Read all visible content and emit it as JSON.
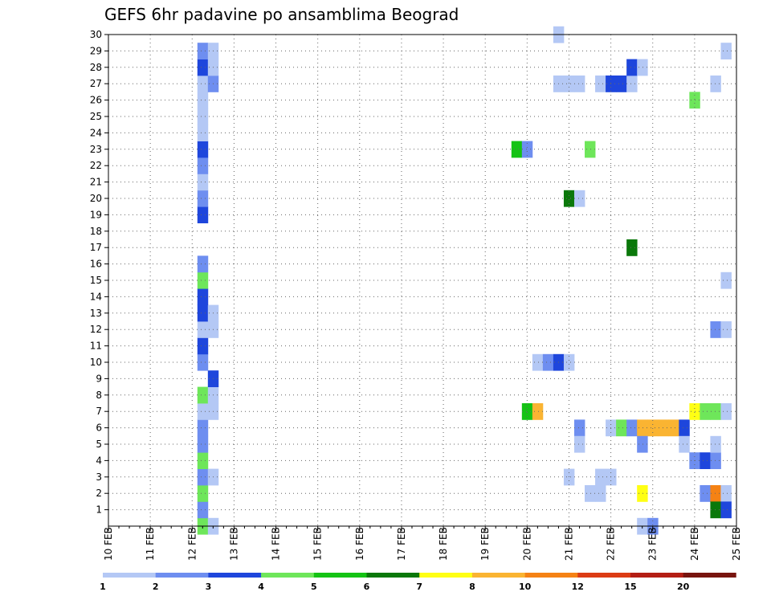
{
  "chart_data": {
    "type": "heatmap",
    "title": "GEFS 6hr padavine po ansamblima Beograd",
    "x_labels": [
      "10 FEB",
      "11 FEB",
      "12 FEB",
      "13 FEB",
      "14 FEB",
      "15 FEB",
      "16 FEB",
      "17 FEB",
      "18 FEB",
      "19 FEB",
      "20 FEB",
      "21 FEB",
      "22 FEB",
      "23 FEB",
      "24 FEB",
      "25 FEB"
    ],
    "y_labels": [
      "1",
      "2",
      "3",
      "4",
      "5",
      "6",
      "7",
      "8",
      "9",
      "10",
      "11",
      "12",
      "13",
      "14",
      "15",
      "16",
      "17",
      "18",
      "19",
      "20",
      "21",
      "22",
      "23",
      "24",
      "25",
      "26",
      "27",
      "28",
      "29",
      "30"
    ],
    "xlim": [
      "10 FEB 00Z",
      "25 FEB 00Z"
    ],
    "ylim": [
      0,
      30
    ],
    "time_step_hours": 6,
    "grid": true,
    "colorbar": {
      "labels": [
        "1",
        "2",
        "3",
        "4",
        "5",
        "6",
        "7",
        "8",
        "10",
        "12",
        "15",
        "20"
      ],
      "colors": [
        "#b4c8f5",
        "#6e8ef0",
        "#1e46dc",
        "#6ee65a",
        "#14c314",
        "#0a780a",
        "#ffff14",
        "#fab432",
        "#f58214",
        "#dc3c14",
        "#b41e14",
        "#78140f"
      ]
    },
    "cells": [
      {
        "member": 0,
        "day": 12.25,
        "level": 4
      },
      {
        "member": 0,
        "day": 12.5,
        "level": 1
      },
      {
        "member": 1,
        "day": 12.25,
        "level": 2
      },
      {
        "member": 2,
        "day": 12.25,
        "level": 4
      },
      {
        "member": 3,
        "day": 12.25,
        "level": 2
      },
      {
        "member": 3,
        "day": 12.5,
        "level": 1
      },
      {
        "member": 4,
        "day": 12.25,
        "level": 4
      },
      {
        "member": 5,
        "day": 12.25,
        "level": 2
      },
      {
        "member": 6,
        "day": 12.25,
        "level": 2
      },
      {
        "member": 7,
        "day": 12.25,
        "level": 1
      },
      {
        "member": 7,
        "day": 12.5,
        "level": 1
      },
      {
        "member": 8,
        "day": 12.25,
        "level": 4
      },
      {
        "member": 8,
        "day": 12.5,
        "level": 1
      },
      {
        "member": 9,
        "day": 12.5,
        "level": 3
      },
      {
        "member": 10,
        "day": 12.25,
        "level": 2
      },
      {
        "member": 11,
        "day": 12.25,
        "level": 3
      },
      {
        "member": 12,
        "day": 12.25,
        "level": 1
      },
      {
        "member": 12,
        "day": 12.5,
        "level": 1
      },
      {
        "member": 13,
        "day": 12.25,
        "level": 3
      },
      {
        "member": 13,
        "day": 12.5,
        "level": 1
      },
      {
        "member": 14,
        "day": 12.25,
        "level": 3
      },
      {
        "member": 15,
        "day": 12.25,
        "level": 4
      },
      {
        "member": 16,
        "day": 12.25,
        "level": 2
      },
      {
        "member": 19,
        "day": 12.25,
        "level": 3
      },
      {
        "member": 20,
        "day": 12.25,
        "level": 2
      },
      {
        "member": 21,
        "day": 12.25,
        "level": 1
      },
      {
        "member": 22,
        "day": 12.25,
        "level": 2
      },
      {
        "member": 23,
        "day": 12.25,
        "level": 3
      },
      {
        "member": 24,
        "day": 12.25,
        "level": 1
      },
      {
        "member": 25,
        "day": 12.25,
        "level": 1
      },
      {
        "member": 26,
        "day": 12.25,
        "level": 1
      },
      {
        "member": 27,
        "day": 12.25,
        "level": 1
      },
      {
        "member": 27,
        "day": 12.5,
        "level": 2
      },
      {
        "member": 28,
        "day": 12.25,
        "level": 3
      },
      {
        "member": 28,
        "day": 12.5,
        "level": 1
      },
      {
        "member": 29,
        "day": 12.25,
        "level": 2
      },
      {
        "member": 29,
        "day": 12.5,
        "level": 1
      },
      {
        "member": 23,
        "day": 19.75,
        "level": 5
      },
      {
        "member": 23,
        "day": 20.0,
        "level": 2
      },
      {
        "member": 7,
        "day": 20.0,
        "level": 5
      },
      {
        "member": 7,
        "day": 20.25,
        "level": 8
      },
      {
        "member": 10,
        "day": 20.25,
        "level": 1
      },
      {
        "member": 10,
        "day": 20.5,
        "level": 2
      },
      {
        "member": 10,
        "day": 20.75,
        "level": 3
      },
      {
        "member": 10,
        "day": 21.0,
        "level": 1
      },
      {
        "member": 30,
        "day": 20.75,
        "level": 1
      },
      {
        "member": 27,
        "day": 20.75,
        "level": 1
      },
      {
        "member": 27,
        "day": 21.0,
        "level": 1
      },
      {
        "member": 27,
        "day": 21.25,
        "level": 1
      },
      {
        "member": 20,
        "day": 21.0,
        "level": 6
      },
      {
        "member": 20,
        "day": 21.25,
        "level": 1
      },
      {
        "member": 3,
        "day": 21.0,
        "level": 1
      },
      {
        "member": 6,
        "day": 21.25,
        "level": 2
      },
      {
        "member": 5,
        "day": 21.25,
        "level": 1
      },
      {
        "member": 2,
        "day": 21.5,
        "level": 1
      },
      {
        "member": 2,
        "day": 21.75,
        "level": 1
      },
      {
        "member": 23,
        "day": 21.5,
        "level": 4
      },
      {
        "member": 3,
        "day": 21.75,
        "level": 1
      },
      {
        "member": 3,
        "day": 22.0,
        "level": 1
      },
      {
        "member": 27,
        "day": 21.75,
        "level": 1
      },
      {
        "member": 27,
        "day": 22.0,
        "level": 3
      },
      {
        "member": 27,
        "day": 22.25,
        "level": 3
      },
      {
        "member": 27,
        "day": 22.5,
        "level": 1
      },
      {
        "member": 6,
        "day": 22.0,
        "level": 1
      },
      {
        "member": 6,
        "day": 22.25,
        "level": 4
      },
      {
        "member": 6,
        "day": 22.5,
        "level": 2
      },
      {
        "member": 6,
        "day": 22.75,
        "level": 8
      },
      {
        "member": 6,
        "day": 23.0,
        "level": 8
      },
      {
        "member": 6,
        "day": 23.25,
        "level": 8
      },
      {
        "member": 6,
        "day": 23.5,
        "level": 8
      },
      {
        "member": 6,
        "day": 23.75,
        "level": 3
      },
      {
        "member": 17,
        "day": 22.5,
        "level": 6
      },
      {
        "member": 28,
        "day": 22.5,
        "level": 3
      },
      {
        "member": 28,
        "day": 22.75,
        "level": 1
      },
      {
        "member": 5,
        "day": 22.75,
        "level": 2
      },
      {
        "member": 2,
        "day": 22.75,
        "level": 7
      },
      {
        "member": 0,
        "day": 22.75,
        "level": 1
      },
      {
        "member": 0,
        "day": 23.0,
        "level": 2
      },
      {
        "member": 5,
        "day": 23.75,
        "level": 1
      },
      {
        "member": 26,
        "day": 24.0,
        "level": 4
      },
      {
        "member": 7,
        "day": 24.0,
        "level": 7
      },
      {
        "member": 7,
        "day": 24.25,
        "level": 4
      },
      {
        "member": 7,
        "day": 24.5,
        "level": 4
      },
      {
        "member": 7,
        "day": 24.75,
        "level": 1
      },
      {
        "member": 4,
        "day": 24.0,
        "level": 2
      },
      {
        "member": 4,
        "day": 24.25,
        "level": 3
      },
      {
        "member": 4,
        "day": 24.5,
        "level": 2
      },
      {
        "member": 2,
        "day": 24.25,
        "level": 2
      },
      {
        "member": 2,
        "day": 24.5,
        "level": 9
      },
      {
        "member": 2,
        "day": 24.75,
        "level": 1
      },
      {
        "member": 1,
        "day": 24.5,
        "level": 6
      },
      {
        "member": 1,
        "day": 24.75,
        "level": 3
      },
      {
        "member": 5,
        "day": 24.5,
        "level": 1
      },
      {
        "member": 27,
        "day": 24.5,
        "level": 1
      },
      {
        "member": 12,
        "day": 24.5,
        "level": 2
      },
      {
        "member": 12,
        "day": 24.75,
        "level": 1
      },
      {
        "member": 15,
        "day": 24.75,
        "level": 1
      },
      {
        "member": 29,
        "day": 24.75,
        "level": 1
      }
    ]
  }
}
